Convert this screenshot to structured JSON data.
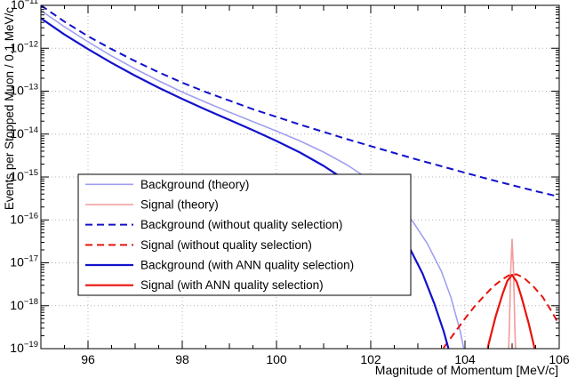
{
  "chart_data": {
    "type": "line",
    "title": "",
    "xlabel": "Magnitude of Momentum [MeV/c]",
    "ylabel": "Events per Stopped Muon / 0.1 MeV/c",
    "x_range": [
      95,
      106
    ],
    "y_scale": "log10",
    "y_log_exponent_range": [
      -19,
      -11
    ],
    "x_major_ticks": [
      96,
      98,
      100,
      102,
      104,
      106
    ],
    "x_minor_tick_step": 0.5,
    "grid": true,
    "legend_position": "center-left",
    "colors": {
      "blue": "#1212cc",
      "light_blue": "#a0a0ef",
      "red": "#e8130c",
      "light_red": "#f29b9b",
      "grid": "#b4b4b4",
      "axis": "#000000"
    },
    "series": [
      {
        "name": "Background (theory)",
        "color": "#a0a0ef",
        "dash": "solid",
        "width": 1.6,
        "points": [
          [
            95,
            -11.12
          ],
          [
            95.5,
            -11.5
          ],
          [
            96,
            -11.85
          ],
          [
            96.5,
            -12.18
          ],
          [
            97,
            -12.48
          ],
          [
            97.5,
            -12.76
          ],
          [
            98,
            -13.02
          ],
          [
            98.5,
            -13.26
          ],
          [
            99,
            -13.49
          ],
          [
            99.5,
            -13.71
          ],
          [
            100,
            -13.93
          ],
          [
            100.5,
            -14.16
          ],
          [
            101,
            -14.42
          ],
          [
            101.5,
            -14.72
          ],
          [
            102,
            -15.08
          ],
          [
            102.3,
            -15.34
          ],
          [
            102.6,
            -15.66
          ],
          [
            102.9,
            -16.05
          ],
          [
            103.2,
            -16.55
          ],
          [
            103.5,
            -17.2
          ],
          [
            103.7,
            -17.8
          ],
          [
            103.9,
            -18.6
          ],
          [
            104.05,
            -19.4
          ],
          [
            104.15,
            -19.8
          ]
        ]
      },
      {
        "name": "Signal (theory)",
        "color": "#f29b9b",
        "dash": "solid",
        "width": 1.6,
        "points": [
          [
            104.9,
            -19.8
          ],
          [
            104.94,
            -18.6
          ],
          [
            104.97,
            -17.2
          ],
          [
            105,
            -16.45
          ],
          [
            105.03,
            -17.2
          ],
          [
            105.06,
            -18.6
          ],
          [
            105.1,
            -19.8
          ]
        ]
      },
      {
        "name": "Background (without quality selection)",
        "color": "#1212cc",
        "dash": "dashed",
        "width": 2,
        "points": [
          [
            95,
            -11.0
          ],
          [
            95.5,
            -11.38
          ],
          [
            96,
            -11.72
          ],
          [
            96.5,
            -12.02
          ],
          [
            97,
            -12.3
          ],
          [
            97.5,
            -12.56
          ],
          [
            98,
            -12.8
          ],
          [
            98.5,
            -13.02
          ],
          [
            99,
            -13.22
          ],
          [
            99.5,
            -13.42
          ],
          [
            100,
            -13.6
          ],
          [
            100.5,
            -13.78
          ],
          [
            101,
            -13.95
          ],
          [
            101.5,
            -14.12
          ],
          [
            102,
            -14.28
          ],
          [
            102.5,
            -14.44
          ],
          [
            103,
            -14.6
          ],
          [
            103.5,
            -14.75
          ],
          [
            104,
            -14.9
          ],
          [
            104.5,
            -15.05
          ],
          [
            105,
            -15.19
          ],
          [
            105.5,
            -15.33
          ],
          [
            106,
            -15.46
          ]
        ]
      },
      {
        "name": "Signal (without quality selection)",
        "color": "#e8130c",
        "dash": "dashed",
        "width": 2,
        "points": [
          [
            103.2,
            -19.7
          ],
          [
            103.5,
            -19.05
          ],
          [
            103.8,
            -18.6
          ],
          [
            104,
            -18.3
          ],
          [
            104.2,
            -18.02
          ],
          [
            104.4,
            -17.78
          ],
          [
            104.6,
            -17.55
          ],
          [
            104.8,
            -17.38
          ],
          [
            104.95,
            -17.28
          ],
          [
            105.1,
            -17.27
          ],
          [
            105.25,
            -17.35
          ],
          [
            105.45,
            -17.55
          ],
          [
            105.65,
            -17.8
          ],
          [
            105.85,
            -18.15
          ],
          [
            106,
            -18.45
          ]
        ]
      },
      {
        "name": "Background (with ANN quality selection)",
        "color": "#1212cc",
        "dash": "solid",
        "width": 2.2,
        "points": [
          [
            95,
            -11.3
          ],
          [
            95.5,
            -11.68
          ],
          [
            96,
            -12.02
          ],
          [
            96.5,
            -12.34
          ],
          [
            97,
            -12.64
          ],
          [
            97.5,
            -12.92
          ],
          [
            98,
            -13.18
          ],
          [
            98.5,
            -13.43
          ],
          [
            99,
            -13.67
          ],
          [
            99.5,
            -13.91
          ],
          [
            100,
            -14.16
          ],
          [
            100.5,
            -14.43
          ],
          [
            101,
            -14.74
          ],
          [
            101.5,
            -15.1
          ],
          [
            102,
            -15.55
          ],
          [
            102.4,
            -16.0
          ],
          [
            102.8,
            -16.6
          ],
          [
            103.1,
            -17.25
          ],
          [
            103.35,
            -17.95
          ],
          [
            103.55,
            -18.6
          ],
          [
            103.75,
            -19.4
          ],
          [
            103.85,
            -19.8
          ]
        ]
      },
      {
        "name": "Signal (with ANN quality selection)",
        "color": "#e8130c",
        "dash": "solid",
        "width": 2.2,
        "points": [
          [
            104.35,
            -19.8
          ],
          [
            104.5,
            -18.9
          ],
          [
            104.65,
            -18.25
          ],
          [
            104.8,
            -17.72
          ],
          [
            104.9,
            -17.42
          ],
          [
            105,
            -17.28
          ],
          [
            105.1,
            -17.45
          ],
          [
            105.2,
            -17.8
          ],
          [
            105.35,
            -18.4
          ],
          [
            105.5,
            -19.1
          ],
          [
            105.6,
            -19.8
          ]
        ]
      }
    ]
  }
}
